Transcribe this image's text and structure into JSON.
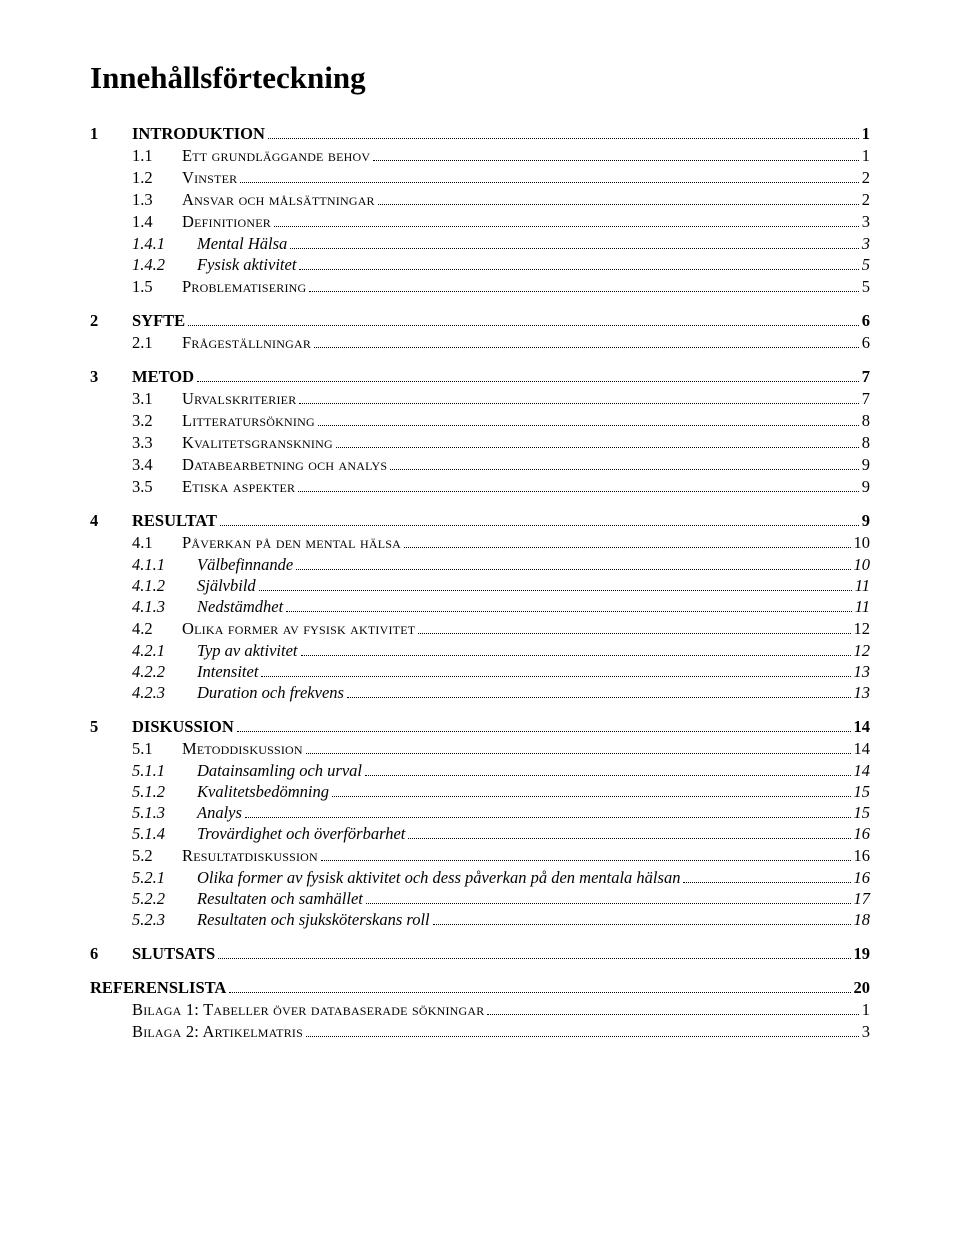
{
  "title": "Innehållsförteckning",
  "entries": [
    {
      "level": 1,
      "num": "1",
      "label": "INTRODUKTION",
      "page": "1"
    },
    {
      "level": 2,
      "num": "1.1",
      "label": "Ett grundläggande behov",
      "page": "1"
    },
    {
      "level": 2,
      "num": "1.2",
      "label": "Vinster",
      "page": "2"
    },
    {
      "level": 2,
      "num": "1.3",
      "label": "Ansvar och målsättningar",
      "page": "2"
    },
    {
      "level": 2,
      "num": "1.4",
      "label": "Definitioner",
      "page": "3"
    },
    {
      "level": 3,
      "num": "1.4.1",
      "label": "Mental Hälsa",
      "page": "3"
    },
    {
      "level": 3,
      "num": "1.4.2",
      "label": "Fysisk aktivitet",
      "page": "5"
    },
    {
      "level": 2,
      "num": "1.5",
      "label": "Problematisering",
      "page": "5"
    },
    {
      "level": 1,
      "num": "2",
      "label": "SYFTE",
      "page": "6"
    },
    {
      "level": 2,
      "num": "2.1",
      "label": "Frågeställningar",
      "page": "6"
    },
    {
      "level": 1,
      "num": "3",
      "label": "METOD",
      "page": "7"
    },
    {
      "level": 2,
      "num": "3.1",
      "label": "Urvalskriterier",
      "page": "7"
    },
    {
      "level": 2,
      "num": "3.2",
      "label": "Litteratursökning",
      "page": "8"
    },
    {
      "level": 2,
      "num": "3.3",
      "label": "Kvalitetsgranskning",
      "page": "8"
    },
    {
      "level": 2,
      "num": "3.4",
      "label": "Databearbetning och analys",
      "page": "9"
    },
    {
      "level": 2,
      "num": "3.5",
      "label": "Etiska aspekter",
      "page": "9"
    },
    {
      "level": 1,
      "num": "4",
      "label": "RESULTAT",
      "page": "9"
    },
    {
      "level": 2,
      "num": "4.1",
      "label": "Påverkan på den mental hälsa",
      "page": "10"
    },
    {
      "level": 3,
      "num": "4.1.1",
      "label": "Välbefinnande",
      "page": "10"
    },
    {
      "level": 3,
      "num": "4.1.2",
      "label": "Självbild",
      "page": "11"
    },
    {
      "level": 3,
      "num": "4.1.3",
      "label": "Nedstämdhet",
      "page": "11"
    },
    {
      "level": 2,
      "num": "4.2",
      "label": "Olika former av fysisk aktivitet",
      "page": "12"
    },
    {
      "level": 3,
      "num": "4.2.1",
      "label": "Typ av aktivitet",
      "page": "12"
    },
    {
      "level": 3,
      "num": "4.2.2",
      "label": "Intensitet",
      "page": "13"
    },
    {
      "level": 3,
      "num": "4.2.3",
      "label": "Duration och frekvens",
      "page": "13"
    },
    {
      "level": 1,
      "num": "5",
      "label": "DISKUSSION",
      "page": "14"
    },
    {
      "level": 2,
      "num": "5.1",
      "label": "Metoddiskussion",
      "page": "14"
    },
    {
      "level": 3,
      "num": "5.1.1",
      "label": "Datainsamling och urval",
      "page": "14"
    },
    {
      "level": 3,
      "num": "5.1.2",
      "label": "Kvalitetsbedömning",
      "page": "15"
    },
    {
      "level": 3,
      "num": "5.1.3",
      "label": "Analys",
      "page": "15"
    },
    {
      "level": 3,
      "num": "5.1.4",
      "label": "Trovärdighet och överförbarhet",
      "page": "16"
    },
    {
      "level": 2,
      "num": "5.2",
      "label": "Resultatdiskussion",
      "page": "16"
    },
    {
      "level": 3,
      "num": "5.2.1",
      "label": "Olika former av fysisk aktivitet och dess påverkan på den mentala hälsan",
      "page": "16"
    },
    {
      "level": 3,
      "num": "5.2.2",
      "label": "Resultaten och samhället",
      "page": "17"
    },
    {
      "level": 3,
      "num": "5.2.3",
      "label": "Resultaten och sjuksköterskans roll",
      "page": "18"
    },
    {
      "level": 1,
      "num": "6",
      "label": "SLUTSATS",
      "page": "19"
    },
    {
      "level": "1n",
      "num": "",
      "label": "REFERENSLISTA",
      "page": "20"
    },
    {
      "level": "2nosc",
      "num": "",
      "label": "Bilaga 1: Tabeller över databaserade sökningar",
      "page": "1"
    },
    {
      "level": "2nosc",
      "num": "",
      "label": "Bilaga 2: Artikelmatris",
      "page": "3"
    }
  ]
}
